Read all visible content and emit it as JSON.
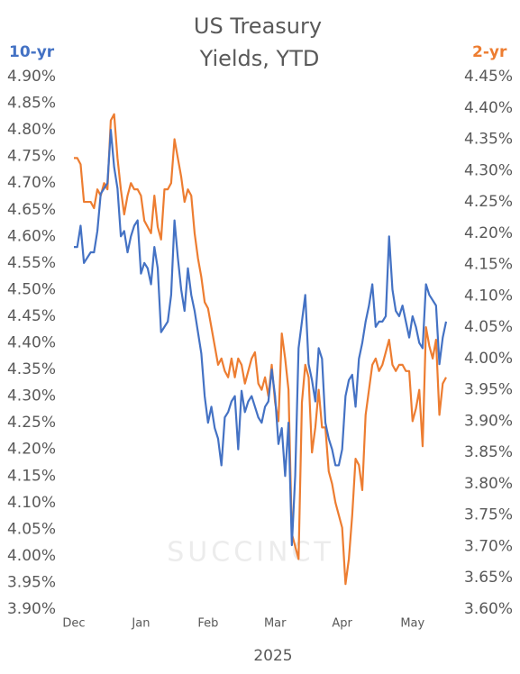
{
  "chart_data": {
    "type": "line",
    "title": "US Treasury Yields, YTD",
    "title_lines": [
      "US Treasury",
      "Yields, YTD"
    ],
    "watermark": "SUCCINCT",
    "xlabel": "2025",
    "ylabel": "10-yr",
    "y2label": "2-yr",
    "categories": [
      "Dec",
      null,
      null,
      null,
      null,
      null,
      null,
      null,
      null,
      null,
      null,
      null,
      null,
      null,
      null,
      null,
      null,
      null,
      null,
      null,
      "Jan",
      null,
      null,
      null,
      null,
      null,
      null,
      null,
      null,
      null,
      null,
      null,
      null,
      null,
      null,
      null,
      null,
      null,
      null,
      null,
      "Feb",
      null,
      null,
      null,
      null,
      null,
      null,
      null,
      null,
      null,
      null,
      null,
      null,
      null,
      null,
      null,
      null,
      null,
      null,
      null,
      "Mar",
      null,
      null,
      null,
      null,
      null,
      null,
      null,
      null,
      null,
      null,
      null,
      null,
      null,
      null,
      null,
      null,
      null,
      null,
      null,
      "Apr",
      null,
      null,
      null,
      null,
      null,
      null,
      null,
      null,
      null,
      null,
      null,
      null,
      null,
      null,
      null,
      null,
      null,
      null,
      null,
      null,
      "May",
      null,
      null,
      null,
      null,
      null,
      null,
      null,
      null,
      null,
      null
    ],
    "series": [
      {
        "name": "10-yr",
        "color": "#4472c4",
        "axis": "y",
        "values": [
          4.58,
          4.58,
          4.62,
          4.55,
          4.56,
          4.57,
          4.57,
          4.61,
          4.68,
          4.69,
          4.7,
          4.8,
          4.73,
          4.69,
          4.6,
          4.61,
          4.57,
          4.6,
          4.62,
          4.63,
          4.53,
          4.55,
          4.54,
          4.51,
          4.58,
          4.54,
          4.42,
          4.43,
          4.44,
          4.49,
          4.63,
          4.56,
          4.5,
          4.46,
          4.54,
          4.49,
          4.46,
          4.42,
          4.38,
          4.3,
          4.25,
          4.28,
          4.24,
          4.22,
          4.17,
          4.26,
          4.27,
          4.29,
          4.3,
          4.2,
          4.31,
          4.27,
          4.29,
          4.3,
          4.28,
          4.26,
          4.25,
          4.28,
          4.29,
          4.35,
          4.3,
          4.21,
          4.24,
          4.15,
          4.25,
          4.02,
          4.15,
          4.39,
          4.44,
          4.49,
          4.36,
          4.33,
          4.29,
          4.39,
          4.37,
          4.25,
          4.22,
          4.2,
          4.17,
          4.17,
          4.2,
          4.3,
          4.33,
          4.34,
          4.28,
          4.37,
          4.4,
          4.44,
          4.47,
          4.51,
          4.43,
          4.44,
          4.44,
          4.45,
          4.6,
          4.5,
          4.46,
          4.45,
          4.47,
          4.44,
          4.41,
          4.45,
          4.43,
          4.4,
          4.39,
          4.51,
          4.49,
          4.48,
          4.47,
          4.36,
          4.41,
          4.44
        ]
      },
      {
        "name": "2-yr",
        "color": "#ed7d31",
        "axis": "y2",
        "values": [
          4.32,
          4.32,
          4.31,
          4.25,
          4.25,
          4.25,
          4.24,
          4.27,
          4.26,
          4.28,
          4.27,
          4.38,
          4.39,
          4.32,
          4.27,
          4.23,
          4.26,
          4.28,
          4.27,
          4.27,
          4.26,
          4.22,
          4.21,
          4.2,
          4.26,
          4.21,
          4.19,
          4.27,
          4.27,
          4.28,
          4.35,
          4.32,
          4.29,
          4.25,
          4.27,
          4.26,
          4.2,
          4.16,
          4.13,
          4.09,
          4.08,
          4.05,
          4.02,
          3.99,
          4.0,
          3.98,
          3.97,
          4.0,
          3.97,
          4.0,
          3.99,
          3.96,
          3.98,
          4.0,
          4.01,
          3.96,
          3.95,
          3.97,
          3.94,
          3.99,
          3.93,
          3.9,
          4.04,
          4.0,
          3.95,
          3.72,
          3.7,
          3.68,
          3.93,
          3.99,
          3.97,
          3.85,
          3.89,
          3.95,
          3.89,
          3.89,
          3.82,
          3.8,
          3.77,
          3.75,
          3.73,
          3.64,
          3.68,
          3.75,
          3.84,
          3.83,
          3.79,
          3.91,
          3.95,
          3.99,
          4.0,
          3.98,
          3.99,
          4.01,
          4.03,
          3.99,
          3.98,
          3.99,
          3.99,
          3.98,
          3.98,
          3.9,
          3.92,
          3.95,
          3.86,
          4.05,
          4.02,
          4.0,
          4.03,
          3.91,
          3.96,
          3.97
        ]
      }
    ],
    "ylim": [
      3.9,
      4.9
    ],
    "yticks": [
      {
        "value": 3.9,
        "label": "3.90%"
      },
      {
        "value": 3.95,
        "label": "3.95%"
      },
      {
        "value": 4.0,
        "label": "4.00%"
      },
      {
        "value": 4.05,
        "label": "4.05%"
      },
      {
        "value": 4.1,
        "label": "4.10%"
      },
      {
        "value": 4.15,
        "label": "4.15%"
      },
      {
        "value": 4.2,
        "label": "4.20%"
      },
      {
        "value": 4.25,
        "label": "4.25%"
      },
      {
        "value": 4.3,
        "label": "4.30%"
      },
      {
        "value": 4.35,
        "label": "4.35%"
      },
      {
        "value": 4.4,
        "label": "4.40%"
      },
      {
        "value": 4.45,
        "label": "4.45%"
      },
      {
        "value": 4.5,
        "label": "4.50%"
      },
      {
        "value": 4.55,
        "label": "4.55%"
      },
      {
        "value": 4.6,
        "label": "4.60%"
      },
      {
        "value": 4.65,
        "label": "4.65%"
      },
      {
        "value": 4.7,
        "label": "4.70%"
      },
      {
        "value": 4.75,
        "label": "4.75%"
      },
      {
        "value": 4.8,
        "label": "4.80%"
      },
      {
        "value": 4.85,
        "label": "4.85%"
      },
      {
        "value": 4.9,
        "label": "4.90%"
      }
    ],
    "y2lim": [
      3.6,
      4.45
    ],
    "y2ticks": [
      {
        "value": 3.6,
        "label": "3.60%"
      },
      {
        "value": 3.65,
        "label": "3.65%"
      },
      {
        "value": 3.7,
        "label": "3.70%"
      },
      {
        "value": 3.75,
        "label": "3.75%"
      },
      {
        "value": 3.8,
        "label": "3.80%"
      },
      {
        "value": 3.85,
        "label": "3.85%"
      },
      {
        "value": 3.9,
        "label": "3.90%"
      },
      {
        "value": 3.95,
        "label": "3.95%"
      },
      {
        "value": 4.0,
        "label": "4.00%"
      },
      {
        "value": 4.05,
        "label": "4.05%"
      },
      {
        "value": 4.1,
        "label": "4.10%"
      },
      {
        "value": 4.15,
        "label": "4.15%"
      },
      {
        "value": 4.2,
        "label": "4.20%"
      },
      {
        "value": 4.25,
        "label": "4.25%"
      },
      {
        "value": 4.3,
        "label": "4.30%"
      },
      {
        "value": 4.35,
        "label": "4.35%"
      },
      {
        "value": 4.4,
        "label": "4.40%"
      },
      {
        "value": 4.45,
        "label": "4.45%"
      }
    ],
    "grid": false
  }
}
